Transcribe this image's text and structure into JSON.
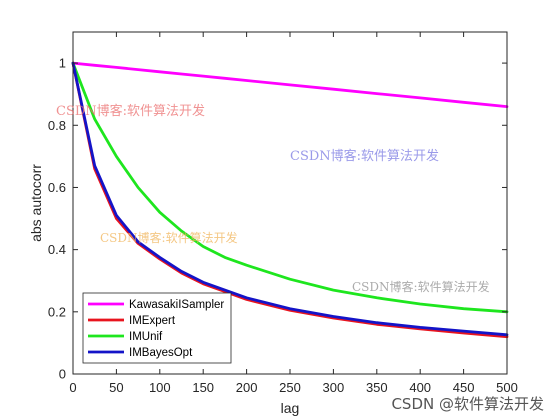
{
  "chart_data": {
    "type": "line",
    "title": "",
    "xlabel": "lag",
    "ylabel": "abs autocorr",
    "xlim": [
      0,
      500
    ],
    "ylim": [
      0,
      1.1
    ],
    "xticks": [
      0,
      50,
      100,
      150,
      200,
      250,
      300,
      350,
      400,
      450,
      500
    ],
    "yticks": [
      0,
      0.2,
      0.4,
      0.6,
      0.8,
      1
    ],
    "x": [
      0,
      25,
      50,
      75,
      100,
      125,
      150,
      175,
      200,
      250,
      300,
      350,
      400,
      450,
      500
    ],
    "series": [
      {
        "name": "KawasakiISampler",
        "color": "#ff00ff",
        "values": [
          1.0,
          0.993,
          0.986,
          0.979,
          0.972,
          0.965,
          0.958,
          0.951,
          0.944,
          0.93,
          0.916,
          0.902,
          0.888,
          0.874,
          0.86
        ]
      },
      {
        "name": "IMExpert",
        "color": "#e8141e",
        "values": [
          1.0,
          0.66,
          0.5,
          0.42,
          0.37,
          0.325,
          0.29,
          0.265,
          0.24,
          0.205,
          0.18,
          0.16,
          0.145,
          0.132,
          0.12
        ]
      },
      {
        "name": "IMUnif",
        "color": "#1ee61e",
        "values": [
          1.0,
          0.82,
          0.7,
          0.6,
          0.52,
          0.46,
          0.41,
          0.375,
          0.35,
          0.305,
          0.27,
          0.245,
          0.225,
          0.21,
          0.2
        ]
      },
      {
        "name": "IMBayesOpt",
        "color": "#1414c8",
        "values": [
          1.0,
          0.67,
          0.51,
          0.425,
          0.375,
          0.33,
          0.295,
          0.27,
          0.245,
          0.21,
          0.185,
          0.165,
          0.15,
          0.138,
          0.126
        ]
      }
    ],
    "legend_position": "bottom-left",
    "grid": false
  },
  "watermarks": [
    "CSDN博客:软件算法开发",
    "CSDN博客:软件算法开发",
    "CSDN博客:软件算法开发",
    "CSDN博客:软件算法开发"
  ],
  "footer": "CSDN @软件算法开发"
}
